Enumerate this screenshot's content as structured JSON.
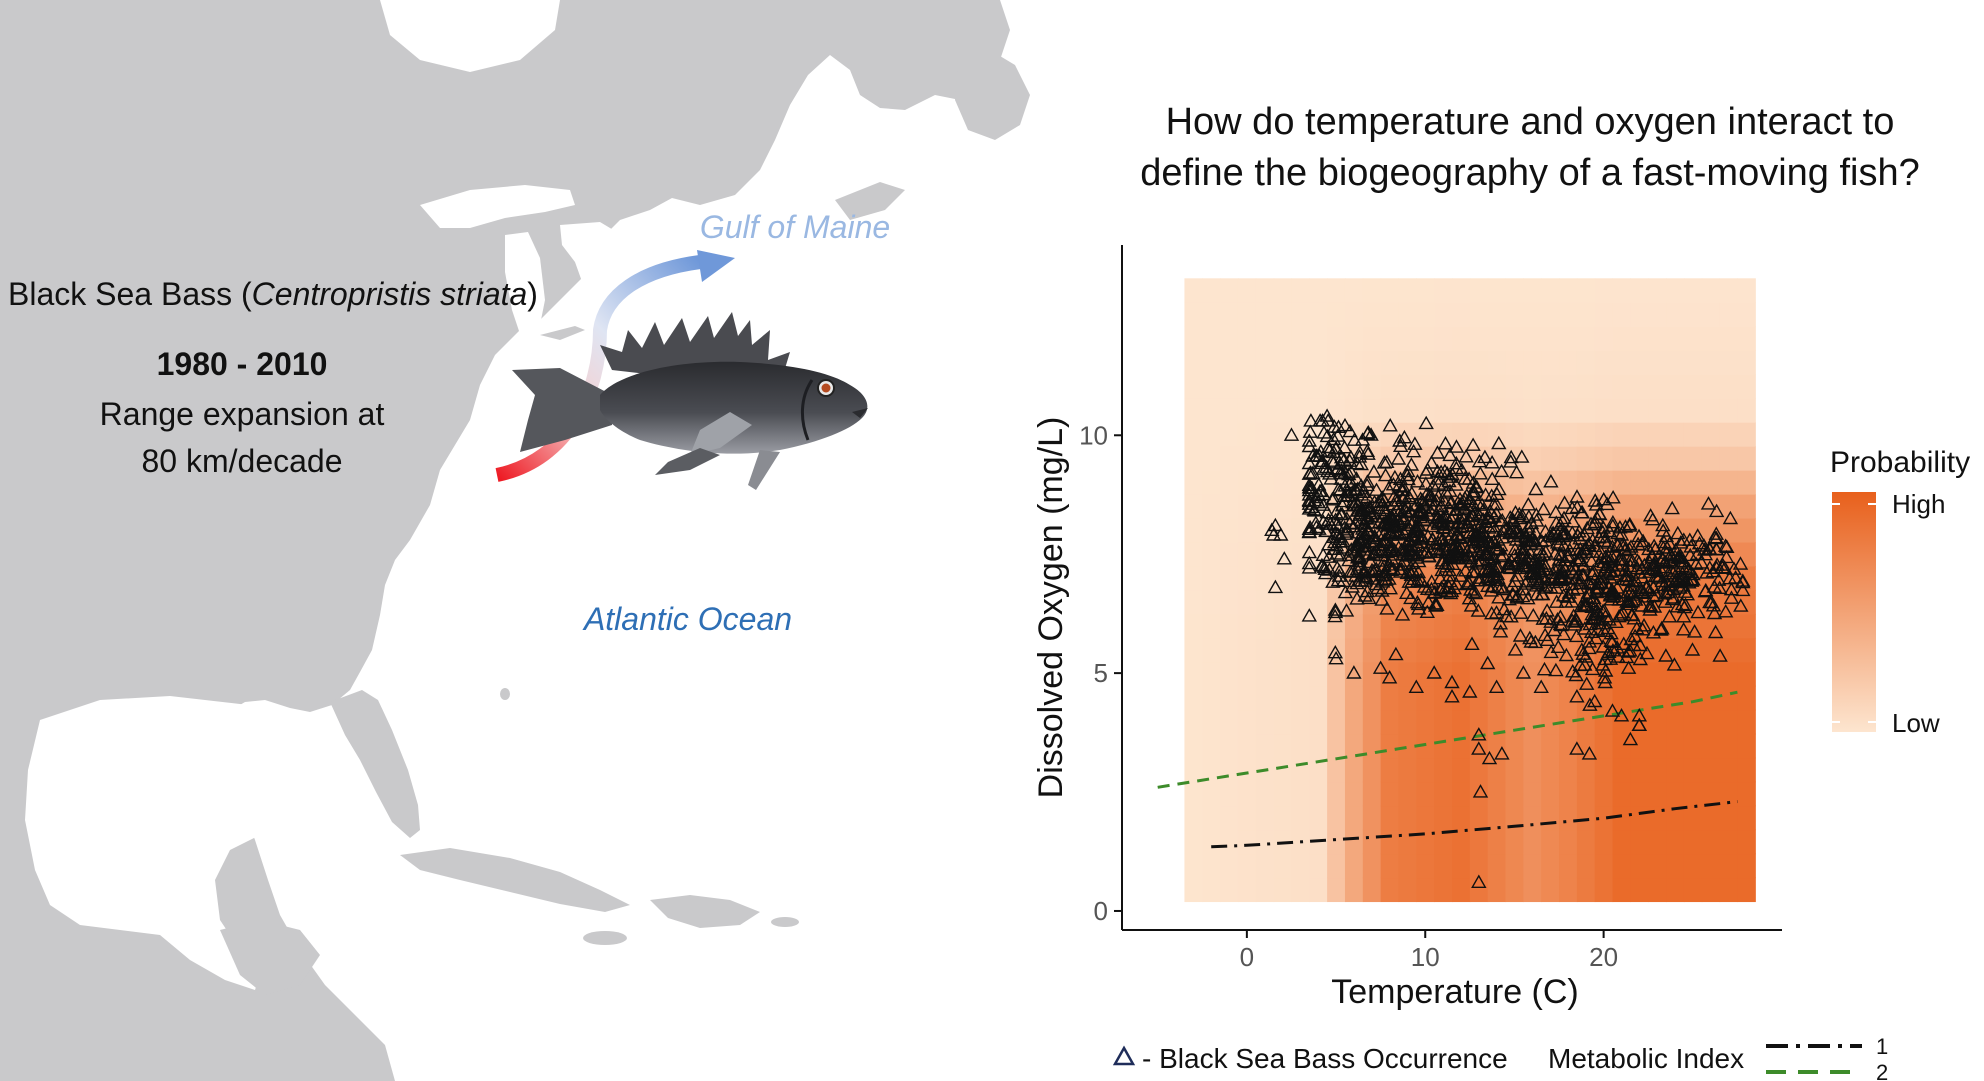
{
  "map": {
    "species_prefix": "Black Sea Bass (",
    "species_latin": "Centropristis striata",
    "species_suffix": ")",
    "years": "1980 - 2010",
    "expansion_line1": "Range expansion at",
    "expansion_line2": "80 km/decade",
    "gulf_label": "Gulf of Maine",
    "ocean_label": "Atlantic Ocean",
    "colors": {
      "land": "#c9c9cb",
      "water": "#ffffff",
      "ocean_text": "#2e6fb5",
      "gulf_text": "#9ab8e2",
      "arrow_start": "#ee1c25",
      "arrow_end": "#6f98d9"
    }
  },
  "question": {
    "line1": "How do temperature and oxygen interact to",
    "line2": "define the biogeography of a fast-moving fish?"
  },
  "chart_data": {
    "type": "scatter",
    "xlabel": "Temperature (C)",
    "ylabel": "Dissolved Oxygen (mg/L)",
    "xlim": [
      -7,
      30
    ],
    "ylim": [
      -0.4,
      14
    ],
    "x_ticks": [
      0,
      10,
      20
    ],
    "y_ticks": [
      0,
      5,
      10
    ],
    "grid": false,
    "heatmap": {
      "x_range": [
        -3.5,
        28.5
      ],
      "y_range": [
        0.2,
        13.3
      ],
      "temp_profile": [
        [
          -3.5,
          0.0
        ],
        [
          4,
          0.05
        ],
        [
          6,
          0.5
        ],
        [
          8,
          0.85
        ],
        [
          12,
          0.95
        ],
        [
          16,
          0.7
        ],
        [
          18,
          0.8
        ],
        [
          21,
          1.0
        ],
        [
          28.5,
          1.0
        ]
      ],
      "oxygen_profile": [
        [
          0.2,
          1.0
        ],
        [
          5,
          1.0
        ],
        [
          7,
          0.85
        ],
        [
          8.5,
          0.55
        ],
        [
          9.5,
          0.25
        ],
        [
          10.5,
          0.05
        ],
        [
          13.3,
          0.0
        ]
      ],
      "low_color": "#fde5cf",
      "high_color": "#e8601c"
    },
    "occurrence_cloud": {
      "series_name": "Black Sea Bass Occurrence",
      "marker": "triangle",
      "main_cluster": [
        {
          "x": 5,
          "y": 9.0,
          "sx": 1.2,
          "sy": 0.7,
          "n": 120
        },
        {
          "x": 6.5,
          "y": 7.8,
          "sx": 1.5,
          "sy": 0.7,
          "n": 160
        },
        {
          "x": 9.5,
          "y": 7.8,
          "sx": 2.0,
          "sy": 0.6,
          "n": 260
        },
        {
          "x": 13,
          "y": 7.6,
          "sx": 2.0,
          "sy": 0.7,
          "n": 230
        },
        {
          "x": 17,
          "y": 7.2,
          "sx": 1.8,
          "sy": 0.7,
          "n": 200
        },
        {
          "x": 21,
          "y": 7.0,
          "sx": 2.0,
          "sy": 0.7,
          "n": 200
        },
        {
          "x": 24.5,
          "y": 7.1,
          "sx": 1.6,
          "sy": 0.5,
          "n": 130
        },
        {
          "x": 20,
          "y": 5.6,
          "sx": 2.2,
          "sy": 0.6,
          "n": 60
        },
        {
          "x": 11,
          "y": 9.2,
          "sx": 2.0,
          "sy": 0.4,
          "n": 60
        }
      ],
      "outliers": [
        [
          1.4,
          8.0
        ],
        [
          1.6,
          8.1
        ],
        [
          1.5,
          7.9
        ],
        [
          1.9,
          7.9
        ],
        [
          2.1,
          7.4
        ],
        [
          1.6,
          6.8
        ],
        [
          3.5,
          6.2
        ],
        [
          5,
          5.3
        ],
        [
          6,
          5.0
        ],
        [
          7.5,
          5.1
        ],
        [
          8,
          4.9
        ],
        [
          9.5,
          4.7
        ],
        [
          10.5,
          5.0
        ],
        [
          11.5,
          4.8
        ],
        [
          11.5,
          4.5
        ],
        [
          12.5,
          4.6
        ],
        [
          13.5,
          5.2
        ],
        [
          14,
          4.7
        ],
        [
          15.5,
          5.0
        ],
        [
          16.5,
          4.7
        ],
        [
          18.5,
          4.5
        ],
        [
          19.5,
          4.4
        ],
        [
          20.5,
          4.2
        ],
        [
          21,
          4.1
        ],
        [
          22,
          4.1
        ],
        [
          22,
          3.9
        ],
        [
          13,
          3.7
        ],
        [
          13,
          3.4
        ],
        [
          13.6,
          3.2
        ],
        [
          14.3,
          3.3
        ],
        [
          13.1,
          2.5
        ],
        [
          18.5,
          3.4
        ],
        [
          19.2,
          3.3
        ],
        [
          21.5,
          3.6
        ],
        [
          22,
          3.9
        ],
        [
          13,
          0.6
        ],
        [
          27.8,
          6.9
        ],
        [
          27.4,
          7.0
        ],
        [
          26.8,
          7.2
        ],
        [
          4.5,
          10.4
        ],
        [
          5.5,
          10.2
        ],
        [
          2.5,
          10.0
        ]
      ]
    },
    "lines": [
      {
        "name": "1",
        "style": "dash-dot",
        "color": "#111111",
        "x": [
          -2,
          0,
          5,
          10,
          15,
          20,
          24,
          27.5
        ],
        "y": [
          1.35,
          1.38,
          1.5,
          1.62,
          1.78,
          1.95,
          2.15,
          2.3
        ]
      },
      {
        "name": "2",
        "style": "dashed",
        "color": "#3d8b2a",
        "x": [
          -5,
          0,
          5,
          10,
          15,
          20,
          25,
          27.5
        ],
        "y": [
          2.6,
          2.9,
          3.2,
          3.5,
          3.8,
          4.1,
          4.4,
          4.6
        ]
      }
    ],
    "legend_probability": {
      "title": "Probability",
      "high": "High",
      "low": "Low",
      "position": "right"
    },
    "bottom_legend": {
      "occurrence": "- Black Sea Bass Occurrence",
      "metabolic_title": "Metabolic Index"
    }
  }
}
